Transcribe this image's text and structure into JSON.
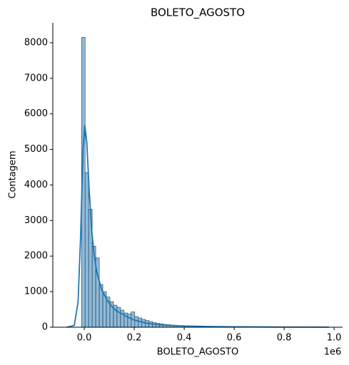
{
  "chart_data": {
    "type": "histogram",
    "title": "BOLETO_AGOSTO",
    "x_label": "BOLETO_AGOSTO",
    "y_label": "Contagem",
    "x_offset_label": "1e6",
    "color": "#1f77b4",
    "bins": [
      -11000,
      3200,
      17400,
      31600,
      45800,
      60000,
      74200,
      88400,
      102600,
      116800,
      131000,
      145200,
      159400,
      173600,
      187800,
      202000,
      216200,
      230400,
      244600,
      258800,
      273000,
      287200,
      301400,
      315600,
      329800,
      344000,
      358200,
      372400,
      386600,
      400800,
      415000,
      429200,
      443400,
      457600,
      471800,
      486000,
      500200,
      514400,
      528600,
      542800,
      557000,
      571200,
      585400,
      599600,
      613800,
      628000,
      642200,
      656400,
      670600,
      684800,
      699000,
      713200,
      727400,
      741600,
      755800,
      770000,
      784200,
      798400,
      812600,
      826800,
      841000,
      855200,
      869400,
      883600,
      897800,
      912000,
      926200,
      940400,
      954600,
      968800,
      983000
    ],
    "values": [
      8150,
      4350,
      3320,
      2280,
      1950,
      1200,
      1000,
      850,
      720,
      620,
      560,
      480,
      400,
      370,
      430,
      300,
      260,
      220,
      190,
      160,
      130,
      110,
      95,
      80,
      70,
      60,
      50,
      45,
      40,
      35,
      30,
      28,
      25,
      22,
      20,
      18,
      16,
      15,
      14,
      12,
      11,
      10,
      9,
      9,
      8,
      8,
      7,
      7,
      6,
      6,
      6,
      5,
      5,
      5,
      5,
      4,
      4,
      4,
      4,
      3,
      3,
      3,
      3,
      3,
      3,
      2,
      2,
      2,
      2,
      2
    ],
    "kde": {
      "x": [
        -70000,
        -40000,
        -25000,
        -15000,
        -5000,
        2000,
        10000,
        20000,
        30000,
        40000,
        50000,
        70000,
        90000,
        110000,
        130000,
        150000,
        170000,
        200000,
        250000,
        300000,
        400000,
        500000,
        600000,
        800000,
        980000
      ],
      "values": [
        0,
        50,
        700,
        2500,
        5000,
        5680,
        5200,
        3800,
        2700,
        2000,
        1550,
        1050,
        780,
        580,
        450,
        380,
        300,
        200,
        110,
        70,
        35,
        20,
        12,
        5,
        2
      ]
    },
    "xlim": [
      -126000,
      1034000
    ],
    "xticks": [
      {
        "value": 0,
        "label": "0.0"
      },
      {
        "value": 200000,
        "label": "0.2"
      },
      {
        "value": 400000,
        "label": "0.4"
      },
      {
        "value": 600000,
        "label": "0.6"
      },
      {
        "value": 800000,
        "label": "0.8"
      },
      {
        "value": 1000000,
        "label": "1.0"
      }
    ],
    "ylim": [
      0,
      8560
    ],
    "yticks": [
      0,
      1000,
      2000,
      3000,
      4000,
      5000,
      6000,
      7000,
      8000
    ]
  }
}
